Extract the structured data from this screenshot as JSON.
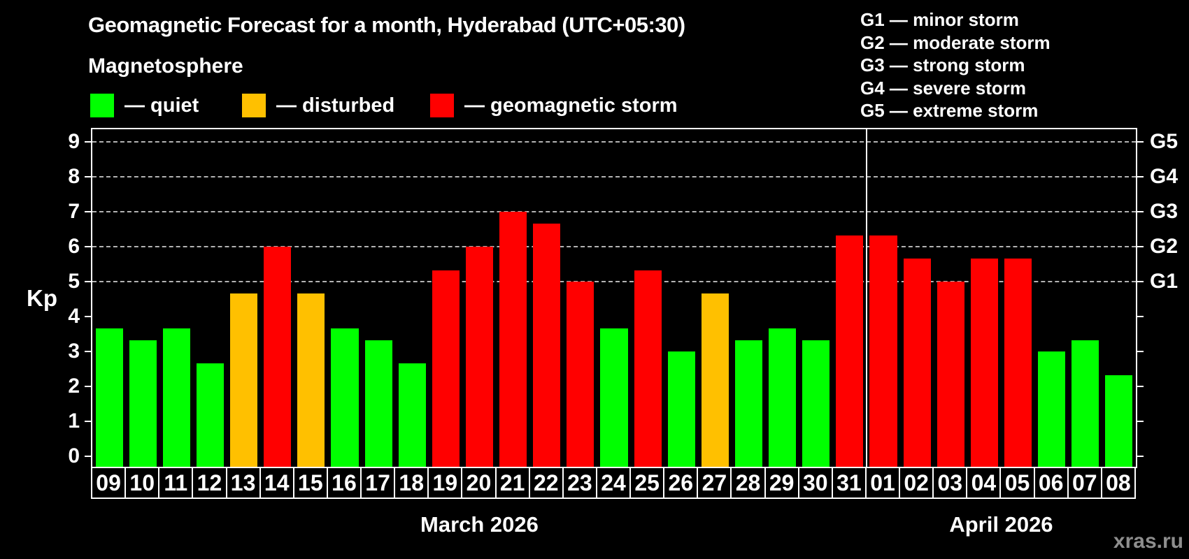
{
  "header": {
    "title": "Geomagnetic Forecast for a month, Hyderabad (UTC+05:30)",
    "subtitle": "Magnetosphere",
    "legend": [
      {
        "label": "— quiet",
        "status": "quiet"
      },
      {
        "label": "— disturbed",
        "status": "disturbed"
      },
      {
        "label": "— geomagnetic storm",
        "status": "storm"
      }
    ],
    "g_legend": [
      "G1 — minor storm",
      "G2 — moderate storm",
      "G3 — strong storm",
      "G4 — severe storm",
      "G5 — extreme storm"
    ]
  },
  "watermark": "xras.ru",
  "chart_data": {
    "type": "bar",
    "title": "Geomagnetic Forecast for a month, Hyderabad (UTC+05:30)",
    "ylabel": "Kp",
    "ylim": [
      0,
      9
    ],
    "grid": "dashed horizontal at G-levels (Kp 5–9)",
    "y_ticks": [
      0,
      1,
      2,
      3,
      4,
      5,
      6,
      7,
      8,
      9
    ],
    "right_axis": [
      {
        "kp": 5,
        "label": "G1"
      },
      {
        "kp": 6,
        "label": "G2"
      },
      {
        "kp": 7,
        "label": "G3"
      },
      {
        "kp": 8,
        "label": "G4"
      },
      {
        "kp": 9,
        "label": "G5"
      }
    ],
    "months": [
      {
        "label": "March 2026",
        "days": 23
      },
      {
        "label": "April 2026",
        "days": 8
      }
    ],
    "categories": [
      "09",
      "10",
      "11",
      "12",
      "13",
      "14",
      "15",
      "16",
      "17",
      "18",
      "19",
      "20",
      "21",
      "22",
      "23",
      "24",
      "25",
      "26",
      "27",
      "28",
      "29",
      "30",
      "31",
      "01",
      "02",
      "03",
      "04",
      "05",
      "06",
      "07",
      "08"
    ],
    "values": [
      3.67,
      3.33,
      3.67,
      2.67,
      4.67,
      6.0,
      4.67,
      3.67,
      3.33,
      2.67,
      5.33,
      6.0,
      7.0,
      6.67,
      5.0,
      3.67,
      5.33,
      3.0,
      4.67,
      3.33,
      3.67,
      3.33,
      6.33,
      6.33,
      5.67,
      5.0,
      5.67,
      5.67,
      3.0,
      3.33,
      2.33
    ],
    "statuses": [
      "quiet",
      "quiet",
      "quiet",
      "quiet",
      "disturbed",
      "storm",
      "disturbed",
      "quiet",
      "quiet",
      "quiet",
      "storm",
      "storm",
      "storm",
      "storm",
      "storm",
      "quiet",
      "storm",
      "quiet",
      "disturbed",
      "quiet",
      "quiet",
      "quiet",
      "storm",
      "storm",
      "storm",
      "storm",
      "storm",
      "storm",
      "quiet",
      "quiet",
      "quiet"
    ],
    "colors": {
      "quiet": "#00ff00",
      "disturbed": "#ffc000",
      "storm": "#ff0000"
    },
    "legend_position": "top-left"
  }
}
